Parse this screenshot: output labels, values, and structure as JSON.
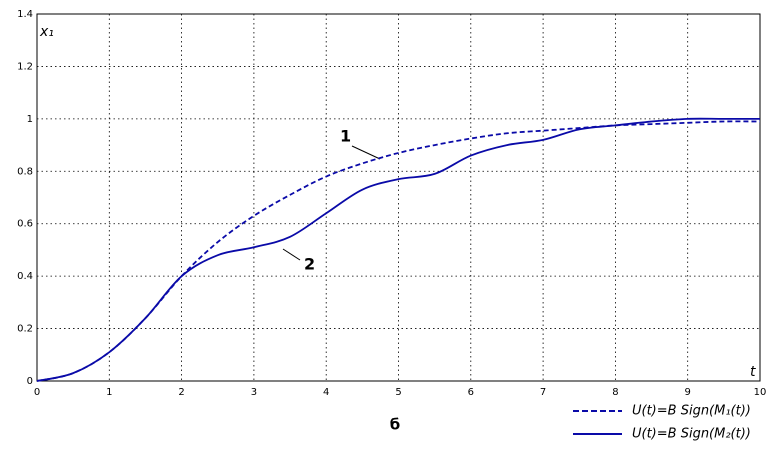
{
  "chart_data": {
    "type": "line",
    "y_label": "x₁",
    "x_label": "t",
    "caption": "б",
    "annotations": [
      "1",
      "2"
    ],
    "x": [
      0,
      0.5,
      1,
      1.5,
      2,
      2.5,
      3,
      3.5,
      4,
      4.5,
      5,
      5.5,
      6,
      6.5,
      7,
      7.5,
      8,
      8.5,
      9,
      9.5,
      10
    ],
    "series": [
      {
        "name": "U(t)=B Sign(M₁(t))",
        "color": "#0a0aa8",
        "dash": true,
        "values": [
          0,
          0.03,
          0.11,
          0.24,
          0.4,
          0.53,
          0.63,
          0.71,
          0.78,
          0.83,
          0.87,
          0.9,
          0.925,
          0.945,
          0.955,
          0.965,
          0.975,
          0.98,
          0.985,
          0.99,
          0.99
        ]
      },
      {
        "name": "U(t)=B Sign(M₂(t))",
        "color": "#0a0aa8",
        "dash": false,
        "values": [
          0,
          0.03,
          0.11,
          0.24,
          0.4,
          0.48,
          0.51,
          0.55,
          0.64,
          0.73,
          0.77,
          0.79,
          0.86,
          0.9,
          0.92,
          0.96,
          0.975,
          0.99,
          1.0,
          1.0,
          1.0
        ]
      }
    ],
    "xlim": [
      0,
      10
    ],
    "xticks": [
      0,
      1,
      2,
      3,
      4,
      5,
      6,
      7,
      8,
      9,
      10
    ],
    "ylim": [
      0,
      1.4
    ],
    "yticks": [
      0,
      0.2,
      0.4,
      0.6,
      0.8,
      1,
      1.2,
      1.4
    ],
    "grid": true
  }
}
